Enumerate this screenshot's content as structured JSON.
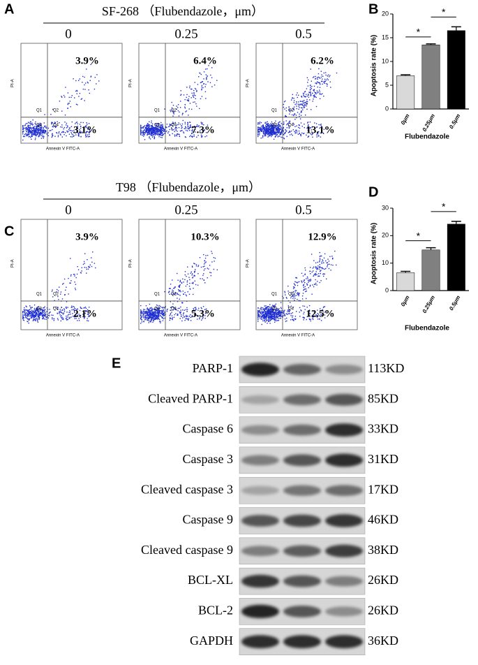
{
  "flow": [
    {
      "panel": "A",
      "title": "SF-268 （Flubendazole，μm）",
      "doses": [
        "0",
        "0.25",
        "0.5"
      ],
      "upper_right": [
        "3.9%",
        "6.4%",
        "6.2%"
      ],
      "lower_right": [
        "3.1%",
        "7.3%",
        "13.1%"
      ],
      "x_label": "Annexin V FITC-A",
      "y_label": "PI-A",
      "quadrants": [
        "Q1",
        "Q2",
        "Q3",
        "Q4"
      ]
    },
    {
      "panel": "C",
      "title": "T98 （Flubendazole，μm）",
      "doses": [
        "0",
        "0.25",
        "0.5"
      ],
      "upper_right": [
        "3.9%",
        "10.3%",
        "12.9%"
      ],
      "lower_right": [
        "2.1%",
        "5.3%",
        "12.5%"
      ],
      "x_label": "Annexin V FITC-A",
      "y_label": "PI-A",
      "quadrants": [
        "Q1",
        "Q2",
        "Q3",
        "Q4"
      ]
    }
  ],
  "chart_data": [
    {
      "type": "bar",
      "panel": "B",
      "x_label": "Flubendazole",
      "y_label": "Apoptosis rate (%)",
      "categories": [
        "0μm",
        "0.25μm",
        "0.5μm"
      ],
      "values": [
        7,
        13.5,
        16.5
      ],
      "errors": [
        0.2,
        0.2,
        0.8
      ],
      "colors": [
        "#d9d9d9",
        "#808080",
        "#000000"
      ],
      "ylim": [
        0,
        20
      ],
      "yticks": [
        0,
        5,
        10,
        15,
        20
      ],
      "significance": [
        {
          "from": 0,
          "to": 1,
          "label": "*"
        },
        {
          "from": 1,
          "to": 2,
          "label": "*"
        }
      ]
    },
    {
      "type": "bar",
      "panel": "D",
      "x_label": "Flubendazole",
      "y_label": "Apoptosis rate (%)",
      "categories": [
        "0μm",
        "0.25μm",
        "0.5μm"
      ],
      "values": [
        6.5,
        14.8,
        24.2
      ],
      "errors": [
        0.5,
        0.8,
        1.0
      ],
      "colors": [
        "#d9d9d9",
        "#808080",
        "#000000"
      ],
      "ylim": [
        0,
        30
      ],
      "yticks": [
        0,
        10,
        20,
        30
      ],
      "significance": [
        {
          "from": 0,
          "to": 1,
          "label": "*"
        },
        {
          "from": 1,
          "to": 2,
          "label": "*"
        }
      ]
    }
  ],
  "blot": {
    "panel": "E",
    "rows": [
      {
        "label": "PARP-1",
        "size": "113KD"
      },
      {
        "label": "Cleaved PARP-1",
        "size": "85KD"
      },
      {
        "label": "Caspase 6",
        "size": "33KD"
      },
      {
        "label": "Caspase 3",
        "size": "31KD"
      },
      {
        "label": "Cleaved caspase 3",
        "size": "17KD"
      },
      {
        "label": "Caspase 9",
        "size": "46KD"
      },
      {
        "label": "Cleaved caspase 9",
        "size": "38KD"
      },
      {
        "label": "BCL-XL",
        "size": "26KD"
      },
      {
        "label": "BCL-2",
        "size": "26KD"
      },
      {
        "label": "GAPDH",
        "size": "36KD"
      }
    ]
  }
}
